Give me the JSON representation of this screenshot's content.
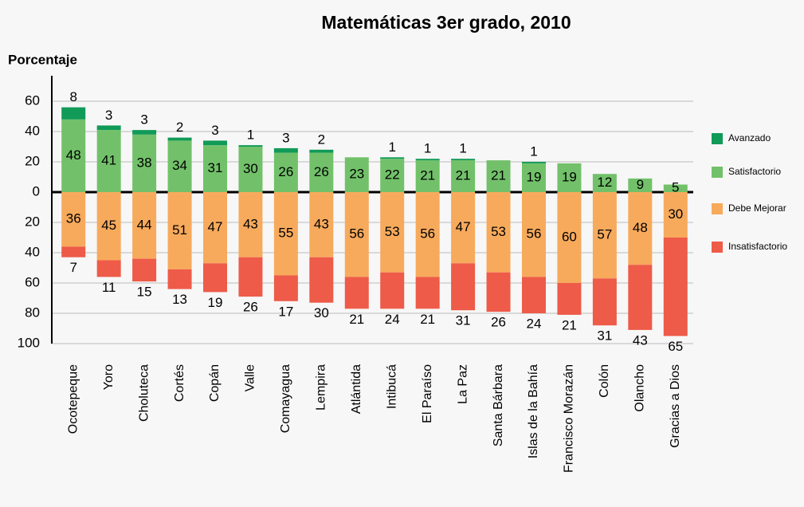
{
  "chart_data": {
    "type": "diverging_stacked_bar",
    "title": "Matemáticas 3er grado, 2010",
    "y_label": "Porcentaje",
    "categories": [
      "Ocotepeque",
      "Yoro",
      "Choluteca",
      "Cortés",
      "Copán",
      "Valle",
      "Comayagua",
      "Lempira",
      "Atlántida",
      "Intibucá",
      "El Paraíso",
      "La Paz",
      "Santa Bárbara",
      "Islas de la Bahía",
      "Francisco Morazán",
      "Colón",
      "Olancho",
      "Gracias a Dios"
    ],
    "series": [
      {
        "name": "Avanzado",
        "color": "#119a58",
        "values": [
          8,
          3,
          3,
          2,
          3,
          1,
          3,
          2,
          null,
          1,
          1,
          1,
          null,
          1,
          null,
          null,
          null,
          null
        ]
      },
      {
        "name": "Satisfactorio",
        "color": "#72c16a",
        "values": [
          48,
          41,
          38,
          34,
          31,
          30,
          26,
          26,
          23,
          22,
          21,
          21,
          21,
          19,
          19,
          12,
          9,
          5
        ]
      },
      {
        "name": "Debe Mejorar",
        "color": "#f7aa5c",
        "values": [
          -36,
          -45,
          -44,
          -51,
          -47,
          -43,
          -55,
          -43,
          -56,
          -53,
          -56,
          -47,
          -53,
          -56,
          -60,
          -57,
          -48,
          -30
        ],
        "value_labels": [
          "36",
          "45",
          "44",
          "51",
          "47",
          "43",
          "55",
          "43",
          "56",
          "53",
          "56",
          "47",
          "53",
          "56",
          "60",
          "57",
          "48",
          "30"
        ]
      },
      {
        "name": "Insatisfactorio",
        "color": "#ee5b49",
        "values": [
          -7,
          -11,
          -15,
          -13,
          -19,
          -26,
          -17,
          -30,
          -21,
          -24,
          -21,
          -31,
          -26,
          -24,
          -21,
          -31,
          -43,
          -65
        ],
        "value_labels": [
          "7",
          "11",
          "15",
          "13",
          "19",
          "26",
          "17",
          "30",
          "21",
          "24",
          "21",
          "31",
          "26",
          "24",
          "21",
          "31",
          "43",
          "65"
        ]
      }
    ],
    "ylim": [
      -100,
      60
    ],
    "yticks": [
      60,
      40,
      20,
      0,
      {
        "value": -20,
        "label": "20"
      },
      {
        "value": -40,
        "label": "40"
      },
      {
        "value": -60,
        "label": "60"
      },
      {
        "value": -80,
        "label": "80"
      },
      {
        "value": -100,
        "label": "100"
      }
    ],
    "grid": true,
    "legend": "right"
  }
}
